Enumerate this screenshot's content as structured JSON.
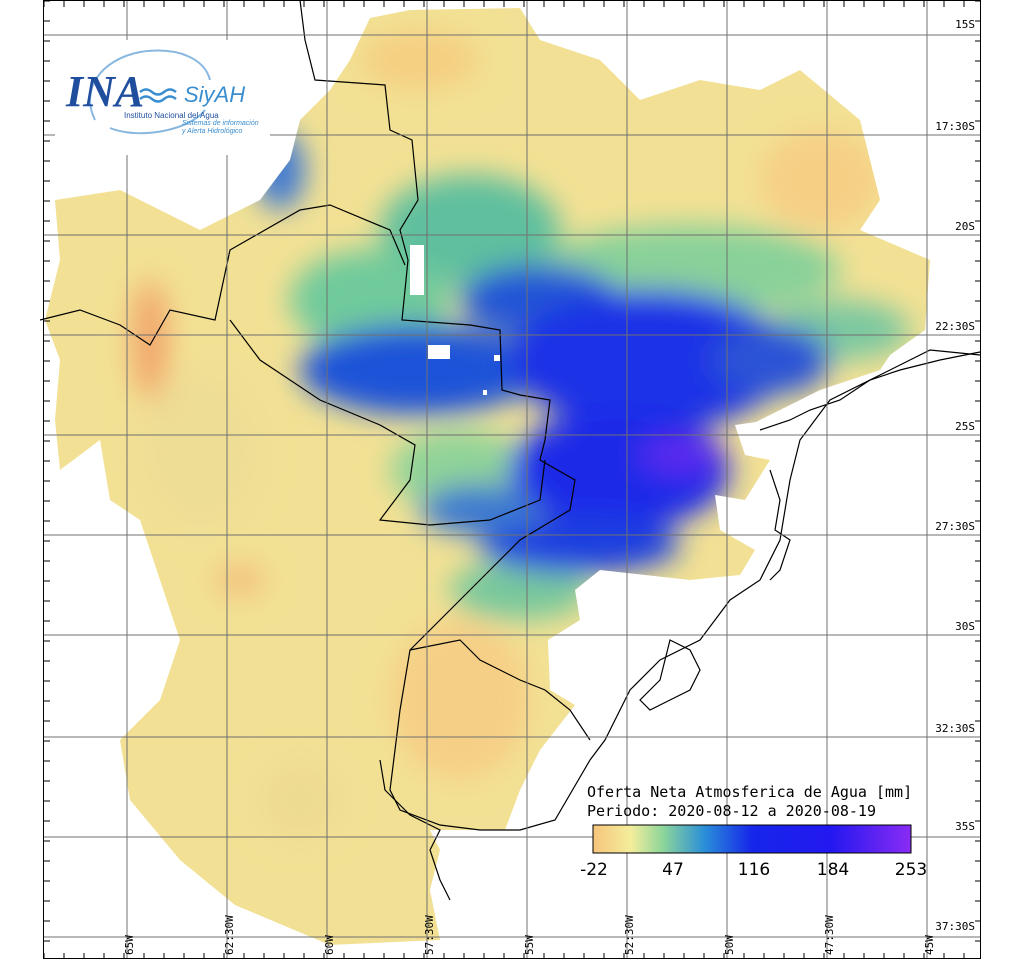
{
  "logo": {
    "acronym": "INA",
    "product": "SiyAH",
    "institution": "Instituto Nacional del Agua",
    "system_line1": "Sistemas de información",
    "system_line2": "y Alerta Hidrológico"
  },
  "map": {
    "title": "Oferta Neta Atmosferica de Agua [mm]",
    "period": "Periodo: 2020-08-12 a 2020-08-19",
    "lat_labels": [
      "15S",
      "17:30S",
      "20S",
      "22:30S",
      "25S",
      "27:30S",
      "30S",
      "32:30S",
      "35S",
      "37:30S"
    ],
    "lon_labels": [
      "65W",
      "62:30W",
      "60W",
      "57:30W",
      "55W",
      "52:30W",
      "50W",
      "47:30W",
      "45W"
    ]
  },
  "legend": {
    "ticks": [
      "-22",
      "47",
      "116",
      "184",
      "253"
    ],
    "colors": [
      "#f6c77f",
      "#f2eb9a",
      "#1e6dd8",
      "#1a22e8",
      "#7a2cf2"
    ]
  }
}
